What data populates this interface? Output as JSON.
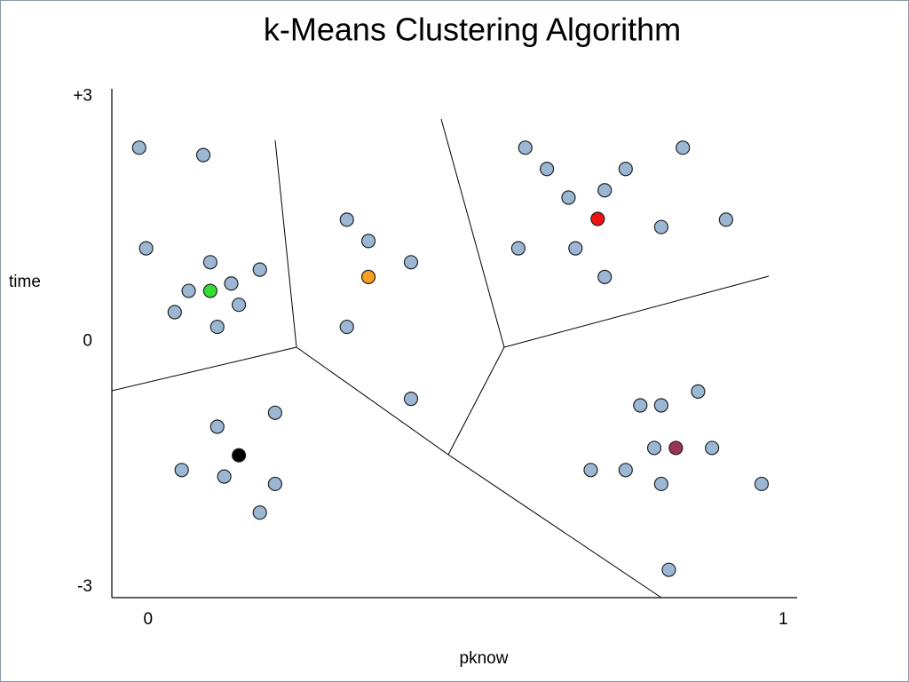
{
  "chart_data": {
    "type": "scatter",
    "title": "k-Means Clustering Algorithm",
    "x_label": "pknow",
    "y_label": "time",
    "xlim": [
      -0.057,
      1.022
    ],
    "ylim": [
      -3.13,
      3.09
    ],
    "xticks": [
      0,
      1
    ],
    "yticks": [
      {
        "value": 3,
        "label": "+3"
      },
      0,
      -3
    ],
    "series": [
      {
        "color": "#9bb7d4",
        "x": [
          -0.014,
          0.087,
          -0.003,
          0.098,
          0.176,
          0.064,
          0.131,
          0.042,
          0.143,
          0.109,
          0.313,
          0.347,
          0.414,
          0.313,
          0.414,
          0.594,
          0.628,
          0.662,
          0.719,
          0.752,
          0.842,
          0.583,
          0.673,
          0.808,
          0.91,
          0.719,
          0.866,
          0.775,
          0.808,
          0.797,
          0.888,
          0.697,
          0.752,
          0.808,
          0.966,
          0.82,
          0.2,
          0.109,
          0.053,
          0.12,
          0.2,
          0.176
        ],
        "values": [
          2.37,
          2.28,
          1.14,
          0.97,
          0.88,
          0.62,
          0.71,
          0.36,
          0.45,
          0.18,
          1.49,
          1.23,
          0.97,
          0.18,
          -0.7,
          2.37,
          2.11,
          1.76,
          1.85,
          2.11,
          2.37,
          1.14,
          1.14,
          1.4,
          1.49,
          0.79,
          -0.61,
          -0.78,
          -0.78,
          -1.3,
          -1.3,
          -1.57,
          -1.57,
          -1.74,
          -1.74,
          -2.79,
          -0.87,
          -1.04,
          -1.57,
          -1.65,
          -1.74,
          -2.09
        ]
      },
      {
        "color": "#33dd33",
        "x": [
          0.098
        ],
        "values": [
          0.62
        ]
      },
      {
        "color": "#f5a020",
        "x": [
          0.347
        ],
        "values": [
          0.79
        ]
      },
      {
        "color": "#ee1111",
        "x": [
          0.708
        ],
        "values": [
          1.5
        ]
      },
      {
        "color": "#993355",
        "x": [
          0.831
        ],
        "values": [
          -1.3
        ]
      },
      {
        "color": "#000000",
        "x": [
          0.143
        ],
        "values": [
          -1.39
        ]
      }
    ]
  }
}
